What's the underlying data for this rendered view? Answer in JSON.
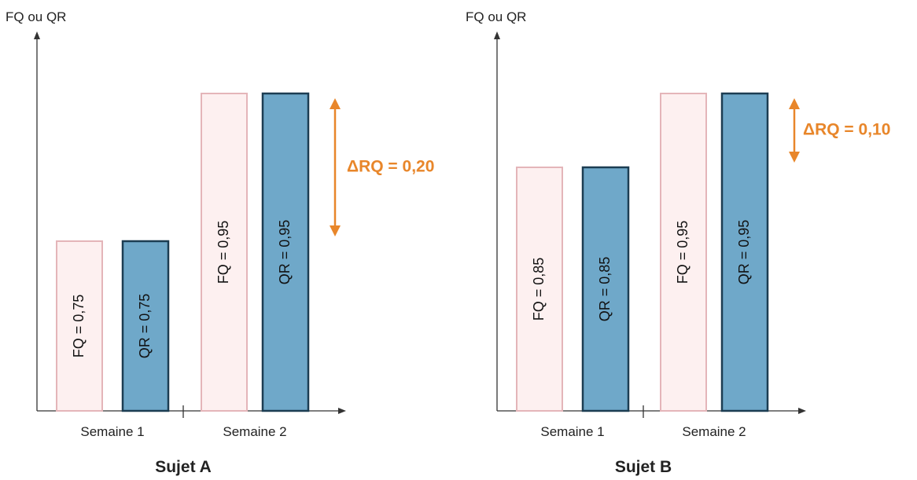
{
  "colors": {
    "fq_fill": "#fdf0f0",
    "fq_stroke": "#e4b5b9",
    "qr_fill": "#6fa8c9",
    "qr_stroke": "#1c3d52",
    "accent": "#e8862a",
    "axis": "#333333"
  },
  "chart_data": [
    {
      "type": "bar",
      "title": "Sujet A",
      "ylabel": "FQ ou QR",
      "categories": [
        "Semaine 1",
        "Semaine 2"
      ],
      "series": [
        {
          "name": "FQ",
          "values": [
            0.75,
            0.95
          ],
          "labels": [
            "FQ = 0,75",
            "FQ = 0,95"
          ]
        },
        {
          "name": "QR",
          "values": [
            0.75,
            0.95
          ],
          "labels": [
            "QR = 0,75",
            "QR = 0,95"
          ]
        }
      ],
      "annotation": {
        "label": "ΔRQ = 0,20",
        "from": 0.75,
        "to": 0.95
      }
    },
    {
      "type": "bar",
      "title": "Sujet B",
      "ylabel": "FQ ou QR",
      "categories": [
        "Semaine 1",
        "Semaine 2"
      ],
      "series": [
        {
          "name": "FQ",
          "values": [
            0.85,
            0.95
          ],
          "labels": [
            "FQ = 0,85",
            "FQ = 0,95"
          ]
        },
        {
          "name": "QR",
          "values": [
            0.85,
            0.95
          ],
          "labels": [
            "QR = 0,85",
            "QR = 0,95"
          ]
        }
      ],
      "annotation": {
        "label": "ΔRQ = 0,10",
        "from": 0.85,
        "to": 0.95
      }
    }
  ]
}
